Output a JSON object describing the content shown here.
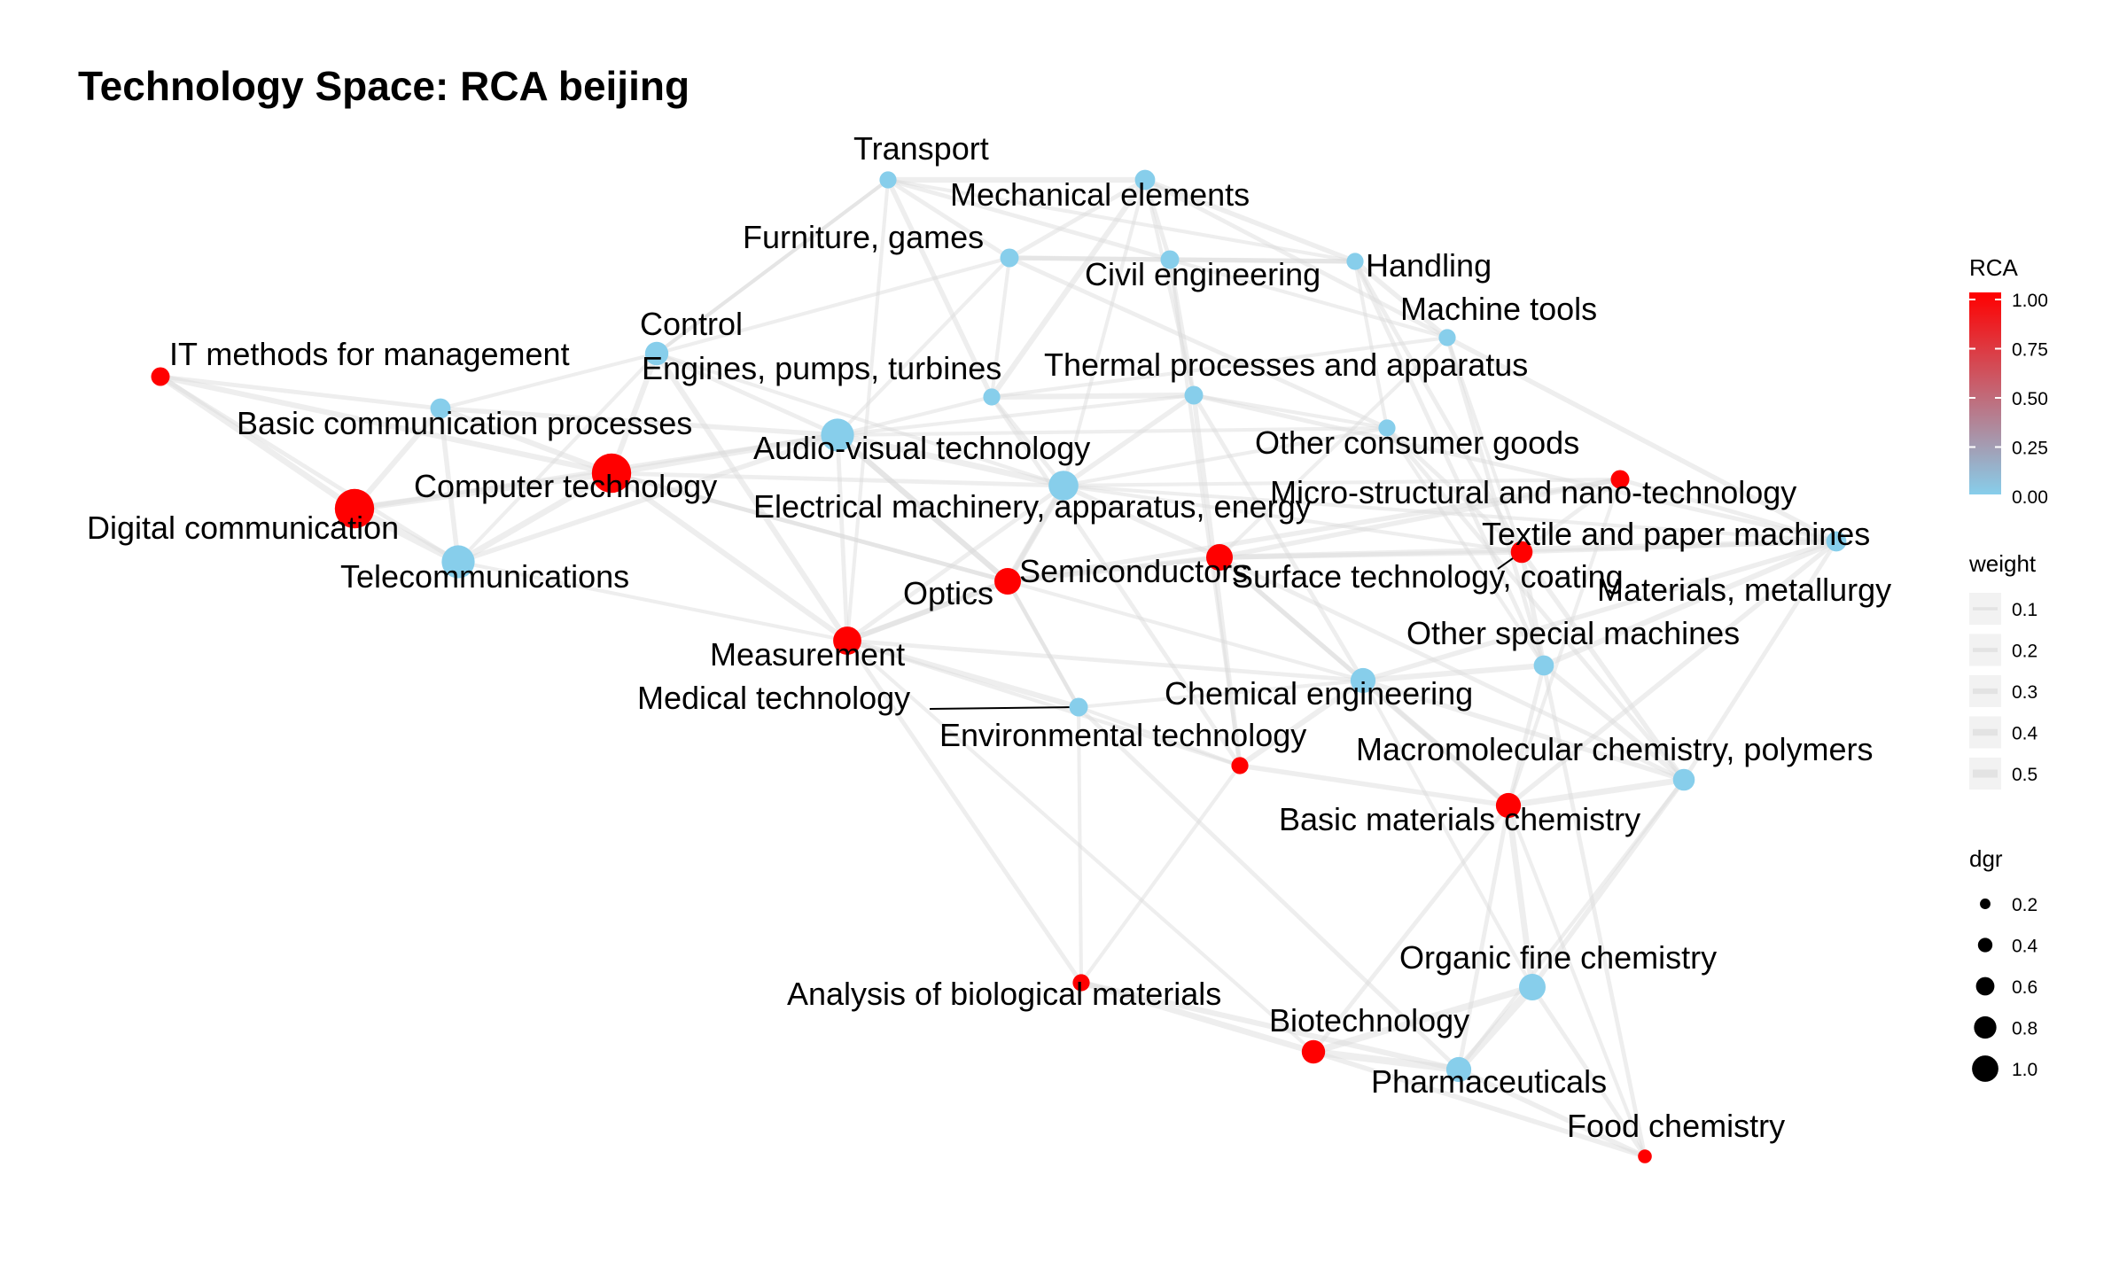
{
  "title": "Technology Space: RCA beijing",
  "colors": {
    "low": "#87CEEB",
    "high": "#FF0000",
    "edge": "#d9d9d9",
    "background": "#ffffff"
  },
  "chart_data": {
    "type": "network",
    "color_variable": "RCA",
    "nodes": [
      {
        "id": "transport",
        "label": "Transport",
        "rca": 0,
        "dgr": 0.2
      },
      {
        "id": "mechanical-elements",
        "label": "Mechanical elements",
        "rca": 0,
        "dgr": 0.3
      },
      {
        "id": "furniture-games",
        "label": "Furniture, games",
        "rca": 0,
        "dgr": 0.25
      },
      {
        "id": "civil-engineering",
        "label": "Civil engineering",
        "rca": 0,
        "dgr": 0.25
      },
      {
        "id": "handling",
        "label": "Handling",
        "rca": 0,
        "dgr": 0.2
      },
      {
        "id": "machine-tools",
        "label": "Machine tools",
        "rca": 0,
        "dgr": 0.2
      },
      {
        "id": "control",
        "label": "Control",
        "rca": 0,
        "dgr": 0.4
      },
      {
        "id": "it-methods",
        "label": "IT methods for management",
        "rca": 1,
        "dgr": 0.25
      },
      {
        "id": "engines",
        "label": "Engines, pumps, turbines",
        "rca": 0,
        "dgr": 0.2
      },
      {
        "id": "thermal",
        "label": "Thermal processes and apparatus",
        "rca": 0,
        "dgr": 0.25
      },
      {
        "id": "basic-comm",
        "label": "Basic communication processes",
        "rca": 0,
        "dgr": 0.3
      },
      {
        "id": "audio-visual",
        "label": "Audio-visual technology",
        "rca": 0,
        "dgr": 0.7
      },
      {
        "id": "other-consumer",
        "label": "Other consumer goods",
        "rca": 0,
        "dgr": 0.2
      },
      {
        "id": "computer-tech",
        "label": "Computer technology",
        "rca": 1,
        "dgr": 0.9
      },
      {
        "id": "micro-nano",
        "label": "Micro-structural and nano-technology",
        "rca": 1,
        "dgr": 0.25
      },
      {
        "id": "electrical",
        "label": "Electrical machinery, apparatus, energy",
        "rca": 0,
        "dgr": 0.6
      },
      {
        "id": "digital-comm",
        "label": "Digital communication",
        "rca": 1,
        "dgr": 0.9
      },
      {
        "id": "textile",
        "label": "Textile and paper machines",
        "rca": 1,
        "dgr": 0.35
      },
      {
        "id": "surface",
        "label": "Surface technology, coating",
        "rca": 1,
        "dgr": 0.5
      },
      {
        "id": "semiconductors",
        "label": "Semiconductors",
        "rca": 1,
        "dgr": 0.5
      },
      {
        "id": "materials",
        "label": "Materials, metallurgy",
        "rca": 0,
        "dgr": 0.3
      },
      {
        "id": "telecom",
        "label": "Telecommunications",
        "rca": 0,
        "dgr": 0.7
      },
      {
        "id": "optics",
        "label": "Optics",
        "rca": 1,
        "dgr": 0.5
      },
      {
        "id": "other-special",
        "label": "Other special machines",
        "rca": 0,
        "dgr": 0.3
      },
      {
        "id": "measurement",
        "label": "Measurement",
        "rca": 1,
        "dgr": 0.55
      },
      {
        "id": "chemical-eng",
        "label": "Chemical engineering",
        "rca": 0,
        "dgr": 0.45
      },
      {
        "id": "medical",
        "label": "Medical technology",
        "rca": 0,
        "dgr": 0.25
      },
      {
        "id": "environmental",
        "label": "Environmental technology",
        "rca": 1,
        "dgr": 0.2
      },
      {
        "id": "macromolecular",
        "label": "Macromolecular chemistry, polymers",
        "rca": 0,
        "dgr": 0.35
      },
      {
        "id": "basic-materials",
        "label": "Basic materials chemistry",
        "rca": 1,
        "dgr": 0.45
      },
      {
        "id": "organic-fine",
        "label": "Organic fine chemistry",
        "rca": 0,
        "dgr": 0.5
      },
      {
        "id": "analysis-bio",
        "label": "Analysis of biological materials",
        "rca": 1,
        "dgr": 0.2
      },
      {
        "id": "biotech",
        "label": "Biotechnology",
        "rca": 1,
        "dgr": 0.4
      },
      {
        "id": "pharma",
        "label": "Pharmaceuticals",
        "rca": 0,
        "dgr": 0.45
      },
      {
        "id": "food-chem",
        "label": "Food chemistry",
        "rca": 1,
        "dgr": 0.1
      }
    ],
    "edges": [
      [
        "it-methods",
        "digital-comm",
        0.35
      ],
      [
        "it-methods",
        "computer-tech",
        0.3
      ],
      [
        "it-methods",
        "basic-comm",
        0.2
      ],
      [
        "it-methods",
        "telecom",
        0.2
      ],
      [
        "digital-comm",
        "telecom",
        0.45
      ],
      [
        "digital-comm",
        "computer-tech",
        0.4
      ],
      [
        "digital-comm",
        "basic-comm",
        0.3
      ],
      [
        "digital-comm",
        "audio-visual",
        0.2
      ],
      [
        "telecom",
        "computer-tech",
        0.35
      ],
      [
        "telecom",
        "basic-comm",
        0.25
      ],
      [
        "telecom",
        "audio-visual",
        0.25
      ],
      [
        "telecom",
        "measurement",
        0.15
      ],
      [
        "telecom",
        "control",
        0.15
      ],
      [
        "basic-comm",
        "computer-tech",
        0.3
      ],
      [
        "basic-comm",
        "audio-visual",
        0.25
      ],
      [
        "basic-comm",
        "control",
        0.15
      ],
      [
        "computer-tech",
        "audio-visual",
        0.35
      ],
      [
        "computer-tech",
        "control",
        0.3
      ],
      [
        "computer-tech",
        "measurement",
        0.3
      ],
      [
        "computer-tech",
        "electrical",
        0.2
      ],
      [
        "computer-tech",
        "optics",
        0.2
      ],
      [
        "computer-tech",
        "semiconductors",
        0.2
      ],
      [
        "control",
        "measurement",
        0.3
      ],
      [
        "control",
        "audio-visual",
        0.2
      ],
      [
        "control",
        "furniture-games",
        0.15
      ],
      [
        "control",
        "electrical",
        0.15
      ],
      [
        "control",
        "transport",
        0.15
      ],
      [
        "audio-visual",
        "electrical",
        0.35
      ],
      [
        "audio-visual",
        "optics",
        0.3
      ],
      [
        "audio-visual",
        "semiconductors",
        0.3
      ],
      [
        "audio-visual",
        "furniture-games",
        0.15
      ],
      [
        "audio-visual",
        "engines",
        0.15
      ],
      [
        "audio-visual",
        "thermal",
        0.15
      ],
      [
        "audio-visual",
        "other-consumer",
        0.15
      ],
      [
        "audio-visual",
        "measurement",
        0.2
      ],
      [
        "electrical",
        "semiconductors",
        0.35
      ],
      [
        "electrical",
        "optics",
        0.2
      ],
      [
        "electrical",
        "surface",
        0.25
      ],
      [
        "electrical",
        "engines",
        0.2
      ],
      [
        "electrical",
        "thermal",
        0.25
      ],
      [
        "electrical",
        "materials",
        0.15
      ],
      [
        "electrical",
        "mechanical-elements",
        0.15
      ],
      [
        "electrical",
        "other-consumer",
        0.15
      ],
      [
        "electrical",
        "micro-nano",
        0.15
      ],
      [
        "electrical",
        "textile",
        0.15
      ],
      [
        "electrical",
        "measurement",
        0.2
      ],
      [
        "semiconductors",
        "optics",
        0.3
      ],
      [
        "semiconductors",
        "surface",
        0.3
      ],
      [
        "semiconductors",
        "micro-nano",
        0.25
      ],
      [
        "semiconductors",
        "measurement",
        0.25
      ],
      [
        "semiconductors",
        "medical",
        0.15
      ],
      [
        "semiconductors",
        "chemical-eng",
        0.15
      ],
      [
        "optics",
        "measurement",
        0.3
      ],
      [
        "optics",
        "medical",
        0.2
      ],
      [
        "measurement",
        "medical",
        0.3
      ],
      [
        "measurement",
        "analysis-bio",
        0.2
      ],
      [
        "measurement",
        "environmental",
        0.15
      ],
      [
        "measurement",
        "biotech",
        0.15
      ],
      [
        "measurement",
        "chemical-eng",
        0.2
      ],
      [
        "medical",
        "analysis-bio",
        0.15
      ],
      [
        "medical",
        "chemical-eng",
        0.15
      ],
      [
        "medical",
        "pharma",
        0.2
      ],
      [
        "medical",
        "environmental",
        0.15
      ],
      [
        "transport",
        "mechanical-elements",
        0.3
      ],
      [
        "transport",
        "furniture-games",
        0.2
      ],
      [
        "transport",
        "engines",
        0.25
      ],
      [
        "transport",
        "civil-engineering",
        0.2
      ],
      [
        "transport",
        "handling",
        0.15
      ],
      [
        "transport",
        "measurement",
        0.15
      ],
      [
        "transport",
        "control",
        0.15
      ],
      [
        "mechanical-elements",
        "engines",
        0.3
      ],
      [
        "mechanical-elements",
        "civil-engineering",
        0.2
      ],
      [
        "mechanical-elements",
        "handling",
        0.25
      ],
      [
        "mechanical-elements",
        "machine-tools",
        0.2
      ],
      [
        "mechanical-elements",
        "furniture-games",
        0.2
      ],
      [
        "mechanical-elements",
        "thermal",
        0.15
      ],
      [
        "furniture-games",
        "civil-engineering",
        0.25
      ],
      [
        "furniture-games",
        "handling",
        0.2
      ],
      [
        "furniture-games",
        "other-consumer",
        0.2
      ],
      [
        "furniture-games",
        "engines",
        0.15
      ],
      [
        "civil-engineering",
        "handling",
        0.25
      ],
      [
        "civil-engineering",
        "thermal",
        0.2
      ],
      [
        "civil-engineering",
        "machine-tools",
        0.15
      ],
      [
        "civil-engineering",
        "environmental",
        0.15
      ],
      [
        "handling",
        "machine-tools",
        0.25
      ],
      [
        "handling",
        "other-special",
        0.2
      ],
      [
        "handling",
        "textile",
        0.2
      ],
      [
        "handling",
        "other-consumer",
        0.15
      ],
      [
        "machine-tools",
        "materials",
        0.25
      ],
      [
        "machine-tools",
        "other-special",
        0.2
      ],
      [
        "machine-tools",
        "textile",
        0.15
      ],
      [
        "machine-tools",
        "surface",
        0.15
      ],
      [
        "machine-tools",
        "engines",
        0.15
      ],
      [
        "engines",
        "thermal",
        0.3
      ],
      [
        "engines",
        "environmental",
        0.2
      ],
      [
        "thermal",
        "environmental",
        0.25
      ],
      [
        "thermal",
        "chemical-eng",
        0.2
      ],
      [
        "thermal",
        "materials",
        0.2
      ],
      [
        "thermal",
        "other-consumer",
        0.15
      ],
      [
        "other-consumer",
        "textile",
        0.2
      ],
      [
        "other-consumer",
        "macromolecular",
        0.2
      ],
      [
        "other-consumer",
        "other-special",
        0.15
      ],
      [
        "surface",
        "textile",
        0.25
      ],
      [
        "surface",
        "materials",
        0.3
      ],
      [
        "surface",
        "micro-nano",
        0.25
      ],
      [
        "surface",
        "chemical-eng",
        0.25
      ],
      [
        "surface",
        "macromolecular",
        0.2
      ],
      [
        "surface",
        "basic-materials",
        0.2
      ],
      [
        "surface",
        "optics",
        0.15
      ],
      [
        "micro-nano",
        "textile",
        0.2
      ],
      [
        "micro-nano",
        "materials",
        0.2
      ],
      [
        "micro-nano",
        "basic-materials",
        0.15
      ],
      [
        "textile",
        "other-special",
        0.25
      ],
      [
        "textile",
        "macromolecular",
        0.25
      ],
      [
        "textile",
        "materials",
        0.2
      ],
      [
        "materials",
        "other-special",
        0.3
      ],
      [
        "materials",
        "chemical-eng",
        0.25
      ],
      [
        "materials",
        "basic-materials",
        0.25
      ],
      [
        "materials",
        "macromolecular",
        0.2
      ],
      [
        "other-special",
        "chemical-eng",
        0.3
      ],
      [
        "other-special",
        "macromolecular",
        0.25
      ],
      [
        "other-special",
        "basic-materials",
        0.2
      ],
      [
        "other-special",
        "food-chem",
        0.2
      ],
      [
        "chemical-eng",
        "environmental",
        0.3
      ],
      [
        "chemical-eng",
        "basic-materials",
        0.3
      ],
      [
        "chemical-eng",
        "macromolecular",
        0.25
      ],
      [
        "chemical-eng",
        "organic-fine",
        0.15
      ],
      [
        "environmental",
        "basic-materials",
        0.25
      ],
      [
        "environmental",
        "analysis-bio",
        0.15
      ],
      [
        "macromolecular",
        "basic-materials",
        0.35
      ],
      [
        "macromolecular",
        "organic-fine",
        0.25
      ],
      [
        "macromolecular",
        "pharma",
        0.15
      ],
      [
        "basic-materials",
        "organic-fine",
        0.35
      ],
      [
        "basic-materials",
        "biotech",
        0.2
      ],
      [
        "basic-materials",
        "pharma",
        0.2
      ],
      [
        "basic-materials",
        "food-chem",
        0.15
      ],
      [
        "organic-fine",
        "pharma",
        0.5
      ],
      [
        "organic-fine",
        "biotech",
        0.4
      ],
      [
        "organic-fine",
        "food-chem",
        0.2
      ],
      [
        "analysis-bio",
        "biotech",
        0.35
      ],
      [
        "analysis-bio",
        "pharma",
        0.3
      ],
      [
        "biotech",
        "pharma",
        0.45
      ],
      [
        "biotech",
        "food-chem",
        0.25
      ],
      [
        "pharma",
        "food-chem",
        0.25
      ]
    ],
    "legend": {
      "rca": {
        "title": "RCA",
        "ticks": [
          "1.00",
          "0.75",
          "0.50",
          "0.25",
          "0.00"
        ]
      },
      "weight": {
        "title": "weight",
        "ticks": [
          "0.1",
          "0.2",
          "0.3",
          "0.4",
          "0.5"
        ]
      },
      "dgr": {
        "title": "dgr",
        "ticks": [
          "0.2",
          "0.4",
          "0.6",
          "0.8",
          "1.0"
        ]
      }
    }
  }
}
